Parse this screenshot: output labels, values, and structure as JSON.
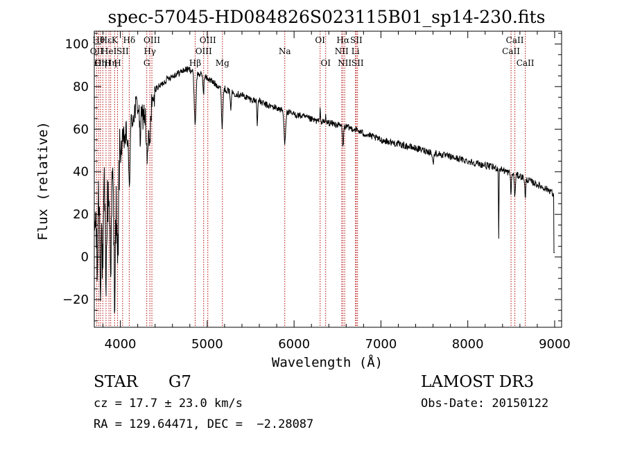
{
  "colors": {
    "line_marker": "#b30000",
    "spectrum": "#000000",
    "axis": "#000000"
  },
  "chart_data": {
    "type": "line",
    "title": "spec-57045-HD084826S023115B01_sp14-230.fits",
    "xlabel": "Wavelength (Å)",
    "ylabel": "Flux (relative)",
    "xlim": [
      3700,
      9080
    ],
    "ylim": [
      -33,
      106
    ],
    "x_ticks": [
      4000,
      5000,
      6000,
      7000,
      8000,
      9000
    ],
    "x_tick_labels": [
      "4000",
      "5000",
      "6000",
      "7000",
      "8000",
      "9000"
    ],
    "y_ticks": [
      -20,
      0,
      20,
      40,
      60,
      80,
      100
    ],
    "y_tick_labels": [
      "−20",
      "0",
      "20",
      "40",
      "60",
      "80",
      "100"
    ],
    "x_minor_step": 200,
    "y_minor_step": 5,
    "spectrum_anchors": [
      [
        3700,
        10
      ],
      [
        3740,
        35
      ],
      [
        3780,
        25
      ],
      [
        3820,
        38
      ],
      [
        3860,
        30
      ],
      [
        3900,
        42
      ],
      [
        3940,
        35
      ],
      [
        3980,
        45
      ],
      [
        4000,
        50
      ],
      [
        4040,
        55
      ],
      [
        4080,
        58
      ],
      [
        4120,
        63
      ],
      [
        4160,
        68
      ],
      [
        4200,
        72
      ],
      [
        4240,
        65
      ],
      [
        4280,
        68
      ],
      [
        4320,
        72
      ],
      [
        4360,
        76
      ],
      [
        4400,
        79
      ],
      [
        4450,
        80
      ],
      [
        4500,
        82
      ],
      [
        4550,
        84
      ],
      [
        4600,
        85
      ],
      [
        4650,
        86
      ],
      [
        4700,
        87
      ],
      [
        4750,
        88
      ],
      [
        4800,
        88
      ],
      [
        4850,
        87
      ],
      [
        4900,
        86
      ],
      [
        4950,
        85
      ],
      [
        5000,
        84
      ],
      [
        5100,
        81
      ],
      [
        5200,
        79
      ],
      [
        5300,
        77
      ],
      [
        5400,
        76
      ],
      [
        5500,
        74
      ],
      [
        5600,
        73
      ],
      [
        5700,
        71
      ],
      [
        5800,
        70
      ],
      [
        5900,
        68
      ],
      [
        6000,
        67
      ],
      [
        6100,
        66
      ],
      [
        6200,
        64.5
      ],
      [
        6300,
        63.5
      ],
      [
        6400,
        63
      ],
      [
        6500,
        62
      ],
      [
        6600,
        61
      ],
      [
        6700,
        60
      ],
      [
        6800,
        58
      ],
      [
        6900,
        56.5
      ],
      [
        7000,
        55
      ],
      [
        7100,
        54
      ],
      [
        7200,
        53
      ],
      [
        7300,
        52
      ],
      [
        7400,
        51
      ],
      [
        7500,
        50
      ],
      [
        7600,
        49
      ],
      [
        7700,
        48
      ],
      [
        7800,
        47
      ],
      [
        7900,
        46
      ],
      [
        8000,
        45
      ],
      [
        8100,
        44
      ],
      [
        8200,
        43
      ],
      [
        8300,
        42
      ],
      [
        8400,
        41
      ],
      [
        8500,
        39
      ],
      [
        8600,
        38
      ],
      [
        8700,
        36
      ],
      [
        8800,
        34
      ],
      [
        8900,
        32
      ],
      [
        8960,
        31
      ],
      [
        9000,
        27
      ]
    ],
    "absorption_features": [
      {
        "center": 3734,
        "width": 7,
        "depth": 40
      },
      {
        "center": 3771,
        "width": 7,
        "depth": 35
      },
      {
        "center": 3798,
        "width": 8,
        "depth": 38
      },
      {
        "center": 3835,
        "width": 9,
        "depth": 42
      },
      {
        "center": 3889,
        "width": 10,
        "depth": 38
      },
      {
        "center": 3934,
        "width": 9,
        "depth": 50
      },
      {
        "center": 3968,
        "width": 9,
        "depth": 48
      },
      {
        "center": 4102,
        "width": 10,
        "depth": 25
      },
      {
        "center": 4227,
        "width": 6,
        "depth": 12
      },
      {
        "center": 4310,
        "width": 12,
        "depth": 25
      },
      {
        "center": 4340,
        "width": 10,
        "depth": 20
      },
      {
        "center": 4383,
        "width": 6,
        "depth": 10
      },
      {
        "center": 4861,
        "width": 10,
        "depth": 24
      },
      {
        "center": 4957,
        "width": 5,
        "depth": 8
      },
      {
        "center": 5172,
        "width": 8,
        "depth": 18
      },
      {
        "center": 5270,
        "width": 6,
        "depth": 8
      },
      {
        "center": 5576,
        "width": 4,
        "depth": 12
      },
      {
        "center": 5893,
        "width": 9,
        "depth": 14
      },
      {
        "center": 6563,
        "width": 6,
        "depth": 10
      },
      {
        "center": 7600,
        "width": 8,
        "depth": 5
      },
      {
        "center": 8356,
        "width": 3,
        "depth": 32
      },
      {
        "center": 8498,
        "width": 5,
        "depth": 9
      },
      {
        "center": 8542,
        "width": 5,
        "depth": 11
      },
      {
        "center": 8662,
        "width": 5,
        "depth": 10
      }
    ],
    "emission_features": [
      {
        "center": 6300,
        "width": 3,
        "height": 8
      },
      {
        "center": 6364,
        "width": 3,
        "height": 3
      }
    ],
    "line_markers": [
      {
        "x": 3727,
        "label": "OII",
        "row": 1
      },
      {
        "x": 3750,
        "label": "Hθ",
        "row": 0
      },
      {
        "x": 3771,
        "label": "Hη",
        "row": 2
      },
      {
        "x": 3798,
        "label": "OIII",
        "row": 2
      },
      {
        "x": 3835,
        "label": "Hε",
        "row": 0
      },
      {
        "x": 3869,
        "label": "HeI",
        "row": 1
      },
      {
        "x": 3889,
        "label": "Hη",
        "row": 2
      },
      {
        "x": 3934,
        "label": "K",
        "row": 0
      },
      {
        "x": 3968,
        "label": "H",
        "row": 2
      },
      {
        "x": 4026,
        "label": "SII",
        "row": 1
      },
      {
        "x": 4102,
        "label": "Hδ",
        "row": 0
      },
      {
        "x": 4304,
        "label": "G",
        "row": 2
      },
      {
        "x": 4340,
        "label": "Hγ",
        "row": 1
      },
      {
        "x": 4363,
        "label": "OIII",
        "row": 0
      },
      {
        "x": 4861,
        "label": "Hβ",
        "row": 2
      },
      {
        "x": 4959,
        "label": "OIII",
        "row": 1
      },
      {
        "x": 5007,
        "label": "OIII",
        "row": 0
      },
      {
        "x": 5175,
        "label": "Mg",
        "row": 2
      },
      {
        "x": 5893,
        "label": "Na",
        "row": 1
      },
      {
        "x": 6300,
        "label": "OI",
        "row": 0
      },
      {
        "x": 6364,
        "label": "OI",
        "row": 2
      },
      {
        "x": 6548,
        "label": "NII",
        "row": 1
      },
      {
        "x": 6563,
        "label": "Hα",
        "row": 0
      },
      {
        "x": 6583,
        "label": "NII",
        "row": 2
      },
      {
        "x": 6707,
        "label": "Li",
        "row": 1
      },
      {
        "x": 6716,
        "label": "SII",
        "row": 0
      },
      {
        "x": 6731,
        "label": "SII",
        "row": 2
      },
      {
        "x": 8498,
        "label": "CaII",
        "row": 1
      },
      {
        "x": 8542,
        "label": "CaII",
        "row": 0
      },
      {
        "x": 8662,
        "label": "CaII",
        "row": 2
      }
    ]
  },
  "info": {
    "object_class": "STAR",
    "subclass": "G7",
    "survey": "LAMOST DR3",
    "velocity": "cz = 17.7 ± 23.0 km/s",
    "obs_date": "Obs-Date: 20150122",
    "coords": "RA = 129.64471, DEC =  −2.28087"
  }
}
